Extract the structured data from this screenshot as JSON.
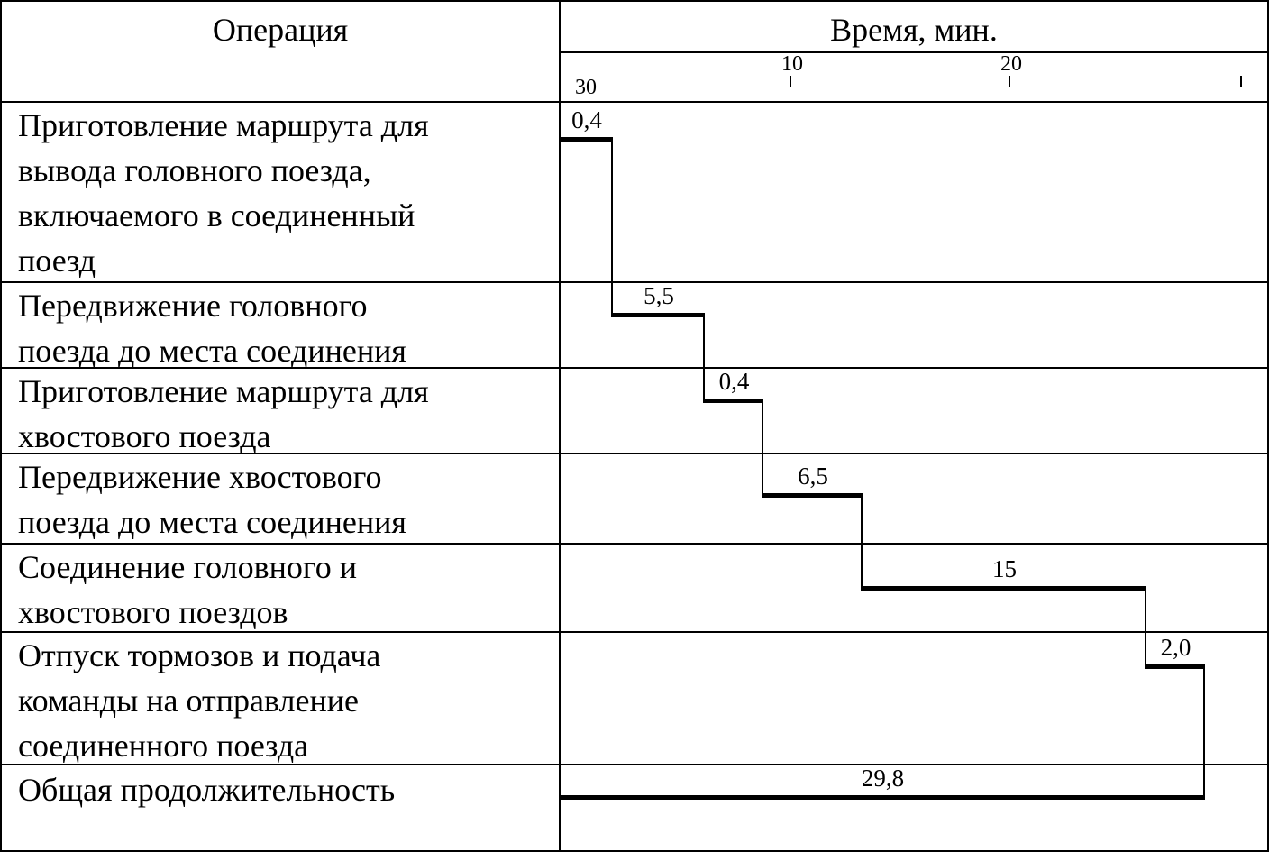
{
  "table": {
    "col1_header": "Операция",
    "col2_header": "Время, мин."
  },
  "chart_data": {
    "type": "gantt",
    "title": "Время, мин.",
    "time_unit": "мин.",
    "axis_ticks": [
      {
        "label": "10",
        "minutes": 10
      },
      {
        "label": "20",
        "minutes": 20
      },
      {
        "label": "",
        "minutes": 30
      }
    ],
    "axis_extra_label": "30",
    "operations": [
      {
        "label": "Приготовление маршрута для\nвывода головного поезда,\nвключаемого в соединенный\nпоезд",
        "duration_label": "0,4",
        "duration_min": 0.4
      },
      {
        "label": "Передвижение головного\nпоезда до места соединения",
        "duration_label": "5,5",
        "duration_min": 5.5
      },
      {
        "label": "Приготовление маршрута для\nхвостового поезда",
        "duration_label": "0,4",
        "duration_min": 0.4
      },
      {
        "label": "Передвижение хвостового\nпоезда до места соединения",
        "duration_label": "6,5",
        "duration_min": 6.5
      },
      {
        "label": "Соединение головного и\nхвостового поездов",
        "duration_label": "15",
        "duration_min": 15
      },
      {
        "label": "Отпуск тормозов и подача\nкоманды на отправление\nсоединенного поезда",
        "duration_label": "2,0",
        "duration_min": 2.0
      },
      {
        "label": "Общая продолжительность",
        "duration_label": "29,8",
        "duration_min": 29.8
      }
    ]
  }
}
